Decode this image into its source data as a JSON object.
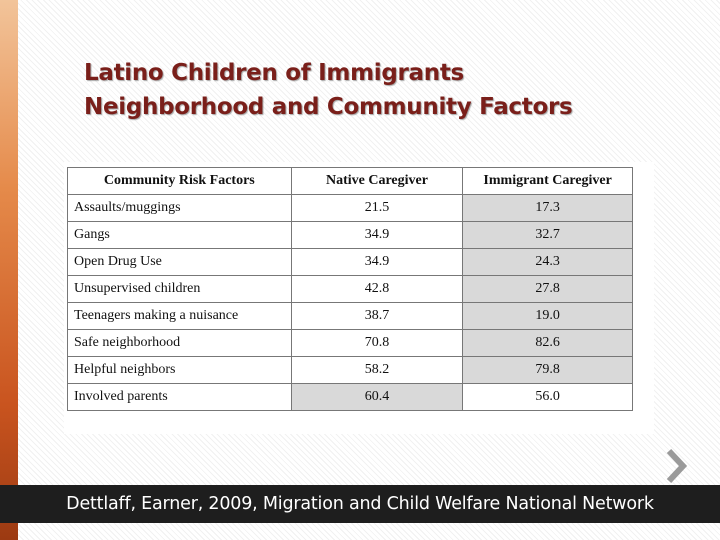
{
  "slide": {
    "title_line1": "Latino Children of Immigrants",
    "title_line2": "Neighborhood and Community Factors",
    "footer": "Dettlaff, Earner, 2009, Migration and Child Welfare National Network",
    "accent_color": "#7a1f1a"
  },
  "table": {
    "headers": [
      "Community Risk Factors",
      "Native Caregiver",
      "Immigrant Caregiver"
    ],
    "rows": [
      {
        "factor": "Assaults/muggings",
        "native": "21.5",
        "immigrant": "17.3"
      },
      {
        "factor": "Gangs",
        "native": "34.9",
        "immigrant": "32.7"
      },
      {
        "factor": "Open Drug Use",
        "native": "34.9",
        "immigrant": "24.3"
      },
      {
        "factor": "Unsupervised children",
        "native": "42.8",
        "immigrant": "27.8"
      },
      {
        "factor": "Teenagers making a nuisance",
        "native": "38.7",
        "immigrant": "19.0"
      },
      {
        "factor": "Safe neighborhood",
        "native": "70.8",
        "immigrant": "82.6"
      },
      {
        "factor": "Helpful neighbors",
        "native": "58.2",
        "immigrant": "79.8"
      },
      {
        "factor": "Involved parents",
        "native": "60.4",
        "immigrant": "56.0"
      }
    ]
  },
  "icons": {
    "next": "chevron-right-icon"
  }
}
